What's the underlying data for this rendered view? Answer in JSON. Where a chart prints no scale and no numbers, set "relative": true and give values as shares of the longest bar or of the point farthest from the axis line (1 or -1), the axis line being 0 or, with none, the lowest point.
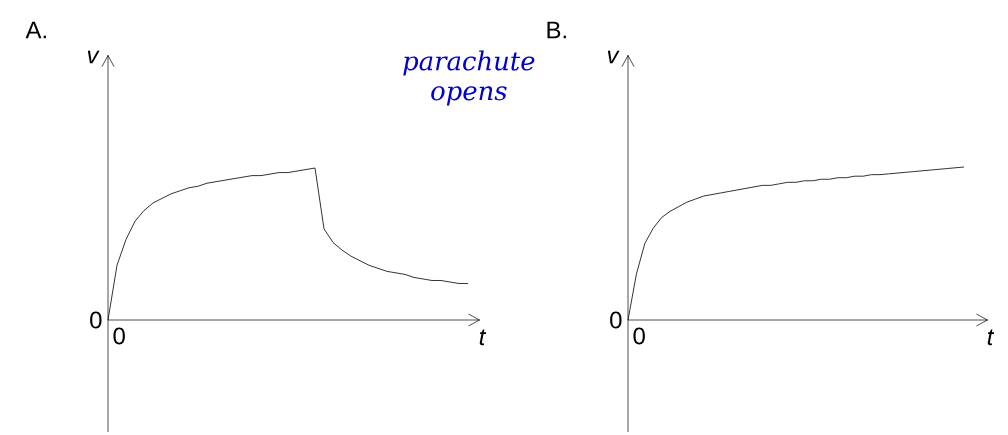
{
  "chart_data": [
    {
      "type": "line",
      "title": "A.",
      "xlabel": "t",
      "ylabel": "v",
      "relative": true,
      "color": "#000000",
      "categories": [
        null,
        null,
        null,
        null,
        null,
        null,
        null,
        null,
        null,
        null,
        null,
        null,
        null,
        null,
        null,
        null,
        null,
        null,
        null,
        null,
        null,
        null,
        null,
        null,
        null,
        null,
        null,
        null,
        null,
        null,
        null,
        null,
        null,
        null,
        null,
        null,
        null,
        null,
        null,
        null,
        null
      ],
      "values": [
        0,
        0.36,
        0.53,
        0.65,
        0.72,
        0.77,
        0.8,
        0.83,
        0.85,
        0.87,
        0.88,
        0.9,
        0.91,
        0.92,
        0.93,
        0.94,
        0.95,
        0.95,
        0.96,
        0.97,
        0.97,
        0.98,
        0.99,
        1.0,
        0.6,
        0.51,
        0.46,
        0.42,
        0.39,
        0.36,
        0.34,
        0.32,
        0.31,
        0.3,
        0.28,
        0.27,
        0.26,
        0.26,
        0.25,
        0.24,
        0.24
      ],
      "annotations": [
        "0",
        "0",
        "parachute opens"
      ]
    },
    {
      "type": "line",
      "title": "B.",
      "xlabel": "t",
      "ylabel": "v",
      "relative": true,
      "color": "#000000",
      "categories": [
        null,
        null,
        null,
        null,
        null,
        null,
        null,
        null,
        null,
        null,
        null,
        null,
        null,
        null,
        null,
        null,
        null,
        null,
        null,
        null,
        null,
        null,
        null,
        null,
        null,
        null,
        null,
        null,
        null,
        null,
        null,
        null,
        null,
        null,
        null,
        null,
        null,
        null,
        null,
        null,
        null
      ],
      "values": [
        0,
        0.3,
        0.5,
        0.6,
        0.67,
        0.71,
        0.74,
        0.77,
        0.79,
        0.81,
        0.82,
        0.83,
        0.84,
        0.85,
        0.86,
        0.87,
        0.88,
        0.88,
        0.89,
        0.9,
        0.9,
        0.91,
        0.91,
        0.92,
        0.92,
        0.93,
        0.93,
        0.94,
        0.94,
        0.95,
        0.95,
        0.955,
        0.96,
        0.965,
        0.97,
        0.975,
        0.98,
        0.985,
        0.99,
        0.995,
        1.0
      ],
      "annotations": [
        "0",
        "0"
      ]
    }
  ]
}
